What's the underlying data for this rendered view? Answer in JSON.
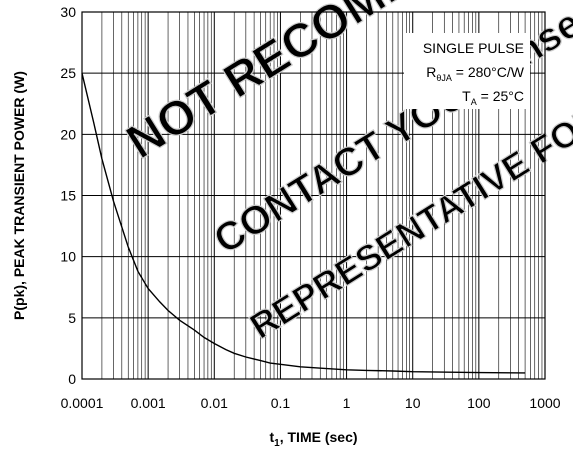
{
  "chart_data": {
    "type": "line",
    "x_scale": "log",
    "xlim": [
      0.0001,
      1000
    ],
    "ylim": [
      0,
      30
    ],
    "x_ticks": [
      {
        "value": 0.0001,
        "label": "0.0001"
      },
      {
        "value": 0.001,
        "label": "0.001"
      },
      {
        "value": 0.01,
        "label": "0.01"
      },
      {
        "value": 0.1,
        "label": "0.1"
      },
      {
        "value": 1,
        "label": "1"
      },
      {
        "value": 10,
        "label": "10"
      },
      {
        "value": 100,
        "label": "100"
      },
      {
        "value": 1000,
        "label": "1000"
      }
    ],
    "y_ticks": [
      {
        "value": 0,
        "label": "0"
      },
      {
        "value": 5,
        "label": "5"
      },
      {
        "value": 10,
        "label": "10"
      },
      {
        "value": 15,
        "label": "15"
      },
      {
        "value": 20,
        "label": "20"
      },
      {
        "value": 25,
        "label": "25"
      },
      {
        "value": 30,
        "label": "30"
      }
    ],
    "xlabel": "t1, TIME (sec)",
    "xlabel_main": "t",
    "xlabel_sub": "1",
    "xlabel_rest": ", TIME (sec)",
    "ylabel": "P(pk), PEAK TRANSIENT POWER (W)",
    "grid": true,
    "annotation": {
      "line1": "SINGLE PULSE",
      "line2": "RθJA = 280°C/W",
      "line2_main": "R",
      "line2_sub": "θJA",
      "line2_rest": " = 280°C/W",
      "line3": "TA = 25°C",
      "line3_main": "T",
      "line3_sub": "A",
      "line3_rest": " = 25°C",
      "placement": "top-right"
    },
    "watermark": {
      "lines": [
        "NOT RECOMMENDED FOR NEW DESIGN",
        "CONTACT YOUR onsemi",
        "REPRESENTATIVE FOR INFORMATION"
      ],
      "color": "#cccccc"
    },
    "series": [
      {
        "color": "#000000",
        "x": [
          0.0001,
          0.00015,
          0.0002,
          0.0003,
          0.0005,
          0.0007,
          0.001,
          0.0015,
          0.002,
          0.003,
          0.005,
          0.007,
          0.01,
          0.015,
          0.02,
          0.03,
          0.05,
          0.07,
          0.1,
          0.2,
          0.5,
          1,
          2,
          5,
          10,
          50,
          100,
          500
        ],
        "y": [
          25.0,
          21.0,
          18.0,
          14.5,
          10.8,
          8.8,
          7.4,
          6.3,
          5.6,
          4.8,
          4.0,
          3.4,
          2.9,
          2.4,
          2.1,
          1.8,
          1.5,
          1.3,
          1.2,
          1.0,
          0.85,
          0.75,
          0.7,
          0.65,
          0.6,
          0.55,
          0.52,
          0.5
        ]
      }
    ]
  }
}
